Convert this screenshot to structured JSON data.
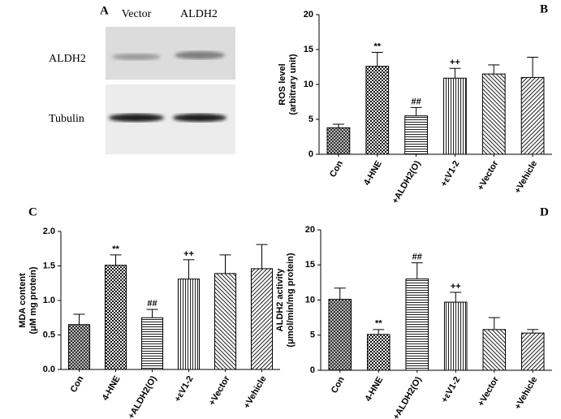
{
  "blot": {
    "panel": "A",
    "lanes": [
      "Vector",
      "ALDH2"
    ],
    "rows": [
      "ALDH2",
      "Tubulin"
    ]
  },
  "chart_data": [
    {
      "type": "bar",
      "title": "B",
      "ylabel": [
        "ROS level",
        "(arbitrary unit)"
      ],
      "categories": [
        "Con",
        "4-HNE",
        "+ALDH2(O)",
        "+εV1-2",
        "+Vector",
        "+Vehicle"
      ],
      "values": [
        3.8,
        12.6,
        5.5,
        10.9,
        11.5,
        11.0
      ],
      "errors": [
        0.5,
        2.0,
        1.2,
        1.4,
        1.3,
        2.9
      ],
      "markers": [
        null,
        "**",
        "##",
        "++",
        null,
        null
      ],
      "ylim": [
        0,
        20
      ],
      "yticks": [
        0,
        5,
        10,
        15,
        20
      ]
    },
    {
      "type": "bar",
      "title": "C",
      "ylabel": [
        "MDA content",
        "(μM mg protein)"
      ],
      "categories": [
        "Con",
        "4-HNE",
        "+ALDH2(O)",
        "+εV1-2",
        "+Vector",
        "+Vehicle"
      ],
      "values": [
        0.65,
        1.51,
        0.75,
        1.31,
        1.39,
        1.46
      ],
      "errors": [
        0.15,
        0.15,
        0.12,
        0.28,
        0.27,
        0.35
      ],
      "markers": [
        null,
        "**",
        "##",
        "++",
        null,
        null
      ],
      "ylim": [
        0,
        2.0
      ],
      "yticks": [
        {
          "value": 0,
          "label": "0.0"
        },
        0.5,
        {
          "value": 1,
          "label": "1.0"
        },
        1.5,
        {
          "value": 2,
          "label": "2.0"
        }
      ]
    },
    {
      "type": "bar",
      "title": "D",
      "ylabel": [
        "ALDH2 activity",
        "(μmol/min/mg protein)"
      ],
      "categories": [
        "Con",
        "4-HNE",
        "+ALDH2(O)",
        "+εV1-2",
        "+Vector",
        "+Vehicle"
      ],
      "values": [
        10.1,
        5.1,
        13.0,
        9.7,
        5.8,
        5.3
      ],
      "errors": [
        1.6,
        0.7,
        2.3,
        1.4,
        1.7,
        0.5
      ],
      "markers": [
        null,
        "**",
        "##",
        "++",
        null,
        null
      ],
      "ylim": [
        0,
        20
      ],
      "yticks": [
        0,
        5,
        10,
        15,
        20
      ]
    }
  ]
}
